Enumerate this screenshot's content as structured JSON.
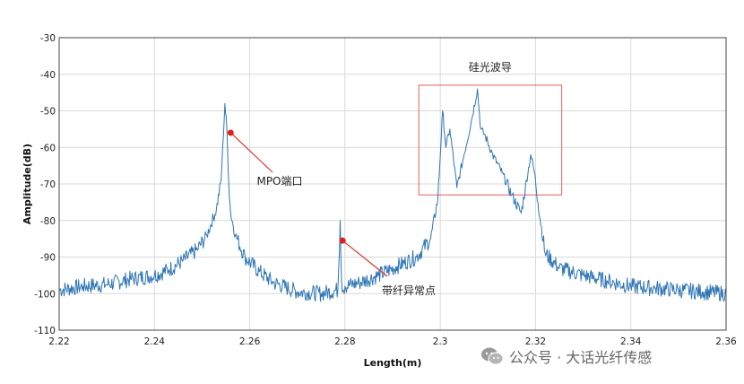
{
  "chart_data": {
    "type": "line",
    "title": "",
    "xlabel": "Length(m)",
    "ylabel": "Amplitude(dB)",
    "xlim": [
      2.22,
      2.36
    ],
    "ylim": [
      -110,
      -30
    ],
    "x_ticks": [
      "2.22",
      "2.24",
      "2.26",
      "2.28",
      "2.3",
      "2.32",
      "2.34",
      "2.36"
    ],
    "y_ticks": [
      "-30",
      "-40",
      "-50",
      "-60",
      "-70",
      "-80",
      "-90",
      "-100",
      "-110"
    ],
    "grid": true,
    "series": [
      {
        "color": "#2e75b6",
        "x": [
          2.22,
          2.225,
          2.23,
          2.235,
          2.24,
          2.243,
          2.246,
          2.249,
          2.251,
          2.253,
          2.254,
          2.2548,
          2.2552,
          2.2556,
          2.256,
          2.257,
          2.259,
          2.262,
          2.265,
          2.27,
          2.275,
          2.2785,
          2.279,
          2.2793,
          2.2796,
          2.28,
          2.283,
          2.287,
          2.291,
          2.295,
          2.298,
          2.2995,
          2.3005,
          2.3012,
          2.302,
          2.3035,
          2.305,
          2.3065,
          2.3078,
          2.3085,
          2.3095,
          2.311,
          2.313,
          2.315,
          2.317,
          2.319,
          2.3198,
          2.3205,
          2.322,
          2.325,
          2.33,
          2.335,
          2.34,
          2.345,
          2.35,
          2.355,
          2.36
        ],
        "y": [
          -99,
          -98,
          -97.5,
          -96,
          -95,
          -93.5,
          -91,
          -88,
          -84,
          -77,
          -69,
          -48,
          -55,
          -70,
          -78,
          -84,
          -90,
          -94,
          -97,
          -99.5,
          -100,
          -99,
          -80,
          -97,
          -99,
          -98,
          -97,
          -95,
          -92.5,
          -90,
          -85,
          -74,
          -50,
          -60,
          -55,
          -71,
          -62,
          -53,
          -44,
          -55,
          -57,
          -62,
          -67,
          -73,
          -78,
          -62,
          -67,
          -75,
          -89,
          -93,
          -95,
          -96.5,
          -98,
          -98.5,
          -99,
          -99.5,
          -100
        ]
      }
    ],
    "annotations": [
      {
        "text": "硅光波导",
        "box_x": [
          2.2955,
          2.3255
        ],
        "box_y": [
          -73,
          -43
        ]
      },
      {
        "text": "MPO端口",
        "point": [
          2.256,
          -56
        ]
      },
      {
        "text": "带纤异常点",
        "point": [
          2.2795,
          -85.5
        ]
      }
    ]
  },
  "watermark": {
    "text": "公众号 · 大话光纤传感",
    "icon": "wechat-icon"
  },
  "colors": {
    "trace": "#2e75b6",
    "marker": "#e02020",
    "box": "#e06060",
    "callout": "#e03030"
  }
}
